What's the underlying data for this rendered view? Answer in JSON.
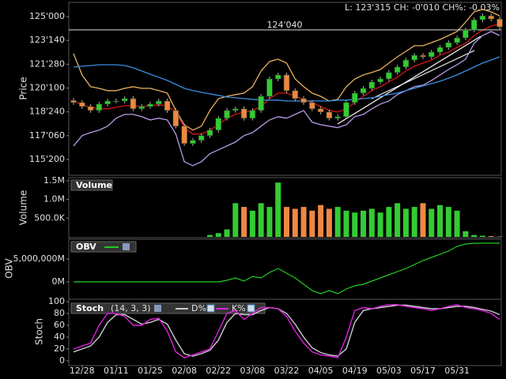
{
  "chart_data": [
    {
      "type": "candlestick",
      "ylabel": "Price",
      "header": "L: 123'315 CH: -0'010 CH%: -0.03%",
      "annotation": {
        "label": "124'040",
        "value": 124.125
      },
      "ylim": [
        114.69,
        125.83
      ],
      "yticks": [
        {
          "value": 115.625,
          "label": "115'200"
        },
        {
          "value": 117.1875,
          "label": "117'060"
        },
        {
          "value": 118.75,
          "label": "118'240"
        },
        {
          "value": 120.3125,
          "label": "120'100"
        },
        {
          "value": 121.875,
          "label": "121'280"
        },
        {
          "value": 123.4375,
          "label": "123'140"
        },
        {
          "value": 125,
          "label": "125'000"
        }
      ],
      "up_color": "#33cc33",
      "down_color": "#ee8844",
      "open": [
        119.5,
        119.36,
        119.1,
        118.84,
        119.26,
        119.46,
        119.46,
        119.62,
        118.95,
        119.1,
        119.26,
        119.46,
        118.84,
        117.81,
        116.67,
        116.88,
        117.19,
        117.55,
        118.33,
        118.84,
        118.95,
        118.33,
        118.84,
        119.77,
        120.91,
        121.17,
        120.14,
        119.62,
        119.36,
        118.95,
        118.74,
        118.33,
        118.43,
        119.36,
        119.98,
        120.29,
        120.71,
        120.91,
        121.33,
        121.69,
        122.15,
        122.46,
        122.36,
        122.67,
        122.98,
        123.29,
        123.6,
        124.12,
        124.79,
        125.05,
        124.84
      ],
      "high": [
        119.65,
        119.51,
        119.25,
        119.41,
        119.61,
        119.61,
        119.77,
        119.77,
        119.25,
        119.41,
        119.61,
        119.61,
        118.99,
        117.96,
        117.03,
        117.34,
        117.7,
        118.48,
        118.99,
        119.1,
        119.1,
        118.99,
        119.92,
        121.06,
        121.32,
        121.32,
        120.29,
        119.77,
        119.51,
        119.1,
        118.89,
        118.58,
        119.51,
        120.13,
        120.44,
        120.86,
        121.06,
        121.48,
        121.84,
        122.3,
        122.61,
        122.61,
        122.82,
        123.13,
        123.44,
        123.75,
        124.27,
        124.94,
        125.2,
        125.2,
        124.99
      ],
      "low": [
        119.21,
        118.95,
        118.69,
        118.69,
        119.11,
        119.31,
        119.31,
        118.8,
        118.8,
        118.95,
        119.11,
        118.69,
        117.66,
        116.52,
        116.52,
        116.73,
        117.04,
        117.4,
        118.18,
        118.69,
        118.18,
        118.18,
        118.69,
        119.62,
        120.76,
        119.99,
        119.47,
        119.21,
        118.8,
        118.59,
        118.18,
        118.18,
        118.28,
        119.21,
        119.83,
        120.14,
        120.56,
        120.76,
        121.18,
        121.54,
        122.0,
        122.21,
        122.21,
        122.52,
        122.83,
        123.14,
        123.45,
        123.97,
        124.64,
        124.69,
        124.18
      ],
      "close": [
        119.36,
        119.1,
        118.84,
        119.26,
        119.46,
        119.46,
        119.62,
        118.95,
        119.1,
        119.26,
        119.46,
        118.84,
        117.81,
        116.67,
        116.88,
        117.19,
        117.55,
        118.33,
        118.84,
        118.95,
        118.33,
        118.84,
        119.77,
        120.91,
        121.17,
        120.14,
        119.62,
        119.36,
        118.95,
        118.74,
        118.33,
        118.43,
        119.36,
        119.98,
        120.29,
        120.71,
        120.91,
        121.33,
        121.69,
        122.15,
        122.46,
        122.36,
        122.67,
        122.98,
        123.29,
        123.6,
        124.12,
        124.79,
        125.05,
        124.84,
        124.33
      ],
      "lines": [
        {
          "color": "#e8b060",
          "values": [
            122.57,
            121.17,
            120.4,
            120.29,
            120.14,
            120.14,
            120.29,
            120.4,
            120.29,
            120.29,
            120.14,
            119.98,
            118.84,
            117.91,
            117.55,
            117.81,
            118.84,
            119.62,
            119.77,
            119.88,
            119.98,
            120.4,
            121.43,
            122.05,
            122.21,
            121.95,
            120.91,
            120.4,
            119.98,
            119.77,
            119.46,
            119.57,
            120.4,
            120.91,
            121.17,
            121.33,
            121.53,
            121.95,
            122.36,
            122.72,
            123.09,
            123.09,
            123.29,
            123.5,
            123.76,
            124.02,
            124.64,
            125.31,
            125.47,
            125.31,
            125.05
          ]
        },
        {
          "color": "#b89be8",
          "values": [
            116.51,
            117.19,
            117.39,
            117.55,
            117.81,
            118.33,
            118.58,
            118.58,
            118.43,
            118.22,
            118.33,
            118.22,
            117.29,
            115.48,
            115.22,
            115.48,
            116.0,
            116.26,
            116.51,
            116.77,
            117.19,
            117.39,
            117.81,
            118.22,
            118.43,
            118.33,
            118.58,
            118.84,
            118.07,
            117.91,
            117.81,
            117.71,
            117.91,
            118.43,
            118.58,
            118.95,
            119.26,
            119.46,
            119.88,
            120.14,
            120.4,
            120.5,
            120.81,
            121.17,
            121.53,
            121.84,
            122.21,
            123.24,
            123.76,
            124.02,
            123.76
          ]
        },
        {
          "color": "#d01818",
          "values": [
            119.46,
            119.21,
            119.05,
            118.95,
            118.95,
            119.05,
            119.15,
            119.15,
            119.1,
            119.15,
            119.21,
            119.15,
            118.74,
            117.71,
            117.29,
            117.29,
            117.55,
            117.91,
            118.33,
            118.58,
            118.74,
            118.84,
            119.1,
            119.62,
            119.98,
            119.98,
            119.77,
            119.57,
            119.36,
            119.1,
            118.84,
            118.74,
            118.95,
            119.36,
            119.77,
            120.14,
            120.4,
            120.71,
            121.02,
            121.43,
            121.74,
            121.95,
            122.15,
            122.47,
            122.67,
            122.98,
            123.24,
            123.76,
            124.12,
            124.38,
            124.53
          ]
        },
        {
          "color": "#3a8ee0",
          "values": [
            121.69,
            121.74,
            121.79,
            121.84,
            121.84,
            121.84,
            121.79,
            121.64,
            121.43,
            121.22,
            121.02,
            120.81,
            120.55,
            120.29,
            120.14,
            120.03,
            119.93,
            119.83,
            119.72,
            119.67,
            119.62,
            119.57,
            119.52,
            119.52,
            119.52,
            119.46,
            119.46,
            119.46,
            119.46,
            119.46,
            119.46,
            119.52,
            119.52,
            119.57,
            119.62,
            119.67,
            119.77,
            119.88,
            119.98,
            120.14,
            120.29,
            120.45,
            120.6,
            120.76,
            120.96,
            121.17,
            121.43,
            121.69,
            121.95,
            122.15,
            122.36
          ]
        }
      ]
    },
    {
      "type": "bar",
      "title": "Volume",
      "ylabel": "Volume",
      "ylim": [
        0,
        1540000
      ],
      "yticks": [
        {
          "value": 500000,
          "label": "500.0K"
        },
        {
          "value": 1000000,
          "label": "1.0M"
        },
        {
          "value": 1500000,
          "label": "1.5M"
        }
      ],
      "up_color": "#33cc33",
      "down_color": "#ee8844",
      "values": [
        null,
        null,
        null,
        null,
        null,
        null,
        null,
        null,
        null,
        null,
        null,
        null,
        null,
        null,
        null,
        null,
        50000,
        100000,
        200000,
        900000,
        800000,
        700000,
        900000,
        800000,
        1450000,
        800000,
        750000,
        800000,
        700000,
        850000,
        750000,
        800000,
        700000,
        650000,
        700000,
        750000,
        650000,
        800000,
        900000,
        750000,
        800000,
        900000,
        750000,
        850000,
        800000,
        700000,
        150000,
        50000,
        30000,
        20000,
        10000
      ]
    },
    {
      "type": "line",
      "title": "OBV",
      "ylabel": "OBV",
      "ylim": [
        -3620000,
        8970000
      ],
      "yticks": [
        {
          "value": 0,
          "label": "0M"
        },
        {
          "value": 5000000,
          "label": "5,000,000M"
        }
      ],
      "color": "#22cc22",
      "values": [
        0,
        0,
        0,
        0,
        0,
        0,
        0,
        0,
        0,
        0,
        0,
        0,
        0,
        0,
        0,
        0,
        0,
        0,
        350000,
        860000,
        170000,
        1200000,
        860000,
        2070000,
        2930000,
        1900000,
        860000,
        -520000,
        -1900000,
        -2590000,
        -1900000,
        -2590000,
        -1550000,
        -860000,
        -520000,
        170000,
        860000,
        1550000,
        2240000,
        2930000,
        3790000,
        4660000,
        5340000,
        6030000,
        6720000,
        7760000,
        8280000,
        8450000,
        8450000,
        8450000,
        8450000
      ]
    },
    {
      "type": "line",
      "title": "Stoch",
      "subtitle": "(14, 3, 3)",
      "ylabel": "Stoch",
      "ylim": [
        -6.7,
        102.7
      ],
      "yticks": [
        0,
        20,
        40,
        60,
        80,
        100
      ],
      "categories": [
        null,
        "12/28",
        null,
        null,
        null,
        "01/11",
        null,
        null,
        null,
        "01/25",
        null,
        null,
        null,
        "02/08",
        null,
        null,
        null,
        "02/22",
        null,
        null,
        null,
        "03/08",
        null,
        null,
        null,
        "03/22",
        null,
        null,
        null,
        "04/05",
        null,
        null,
        null,
        "04/19",
        null,
        null,
        null,
        "05/03",
        null,
        null,
        null,
        "05/17",
        null,
        null,
        null,
        "05/31",
        null,
        null,
        null,
        null,
        null
      ],
      "series": [
        {
          "name": "D%",
          "color": "#cccccc",
          "values": [
            15,
            20,
            25,
            40,
            65,
            78,
            78,
            70,
            62,
            65,
            70,
            62,
            35,
            12,
            8,
            12,
            18,
            35,
            65,
            80,
            78,
            78,
            85,
            90,
            88,
            80,
            62,
            40,
            22,
            14,
            10,
            8,
            20,
            65,
            85,
            88,
            90,
            92,
            94,
            94,
            92,
            90,
            88,
            88,
            90,
            92,
            92,
            90,
            87,
            84,
            78
          ]
        },
        {
          "name": "K%",
          "color": "#dd22dd",
          "values": [
            20,
            25,
            30,
            60,
            80,
            80,
            75,
            60,
            60,
            70,
            72,
            50,
            15,
            5,
            10,
            15,
            20,
            50,
            80,
            85,
            70,
            80,
            90,
            90,
            88,
            75,
            50,
            30,
            15,
            10,
            8,
            5,
            40,
            85,
            90,
            88,
            92,
            95,
            95,
            92,
            90,
            88,
            85,
            88,
            92,
            95,
            90,
            88,
            85,
            80,
            70
          ]
        }
      ]
    }
  ]
}
